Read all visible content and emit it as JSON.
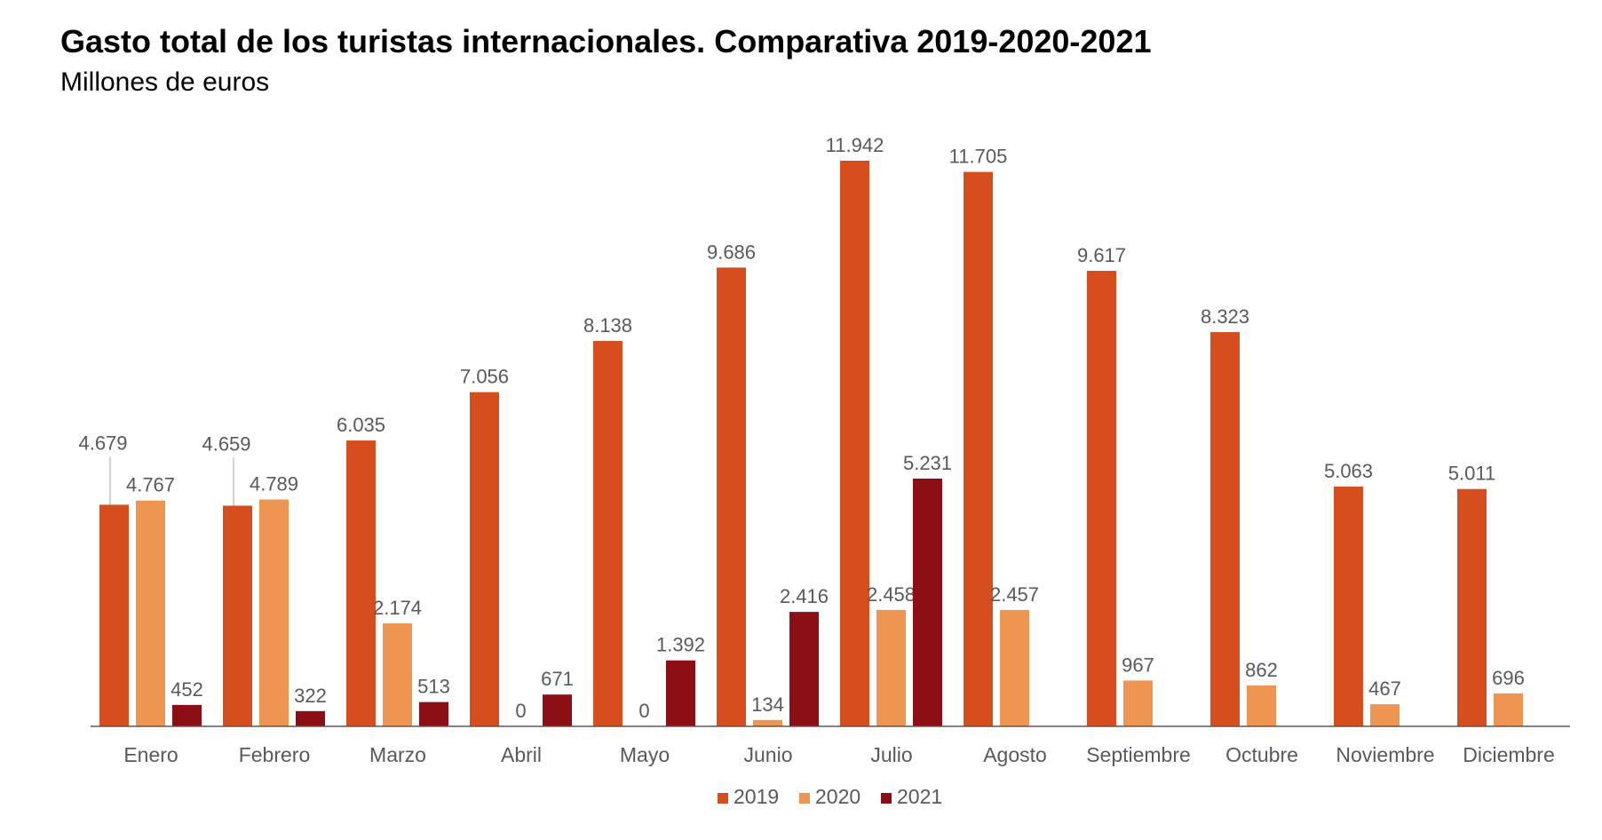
{
  "title": "Gasto total de los turistas internacionales. Comparativa 2019-2020-2021",
  "subtitle": "Millones de euros",
  "colors": {
    "s2019": "#d64d1e",
    "s2020": "#ef9552",
    "s2021": "#8b0f14",
    "axis": "#595959",
    "label": "#595959"
  },
  "chart_data": {
    "type": "bar",
    "title": "Gasto total de los turistas internacionales. Comparativa 2019-2020-2021",
    "subtitle": "Millones de euros",
    "categories": [
      "Enero",
      "Febrero",
      "Marzo",
      "Abril",
      "Mayo",
      "Junio",
      "Julio",
      "Agosto",
      "Septiembre",
      "Octubre",
      "Noviembre",
      "Diciembre"
    ],
    "series": [
      {
        "name": "2019",
        "color": "#d64d1e",
        "values": [
          4679,
          4659,
          6035,
          7056,
          8138,
          9686,
          11942,
          11705,
          9617,
          8323,
          5063,
          5011
        ],
        "labels": [
          "4.679",
          "4.659",
          "6.035",
          "7.056",
          "8.138",
          "9.686",
          "11.942",
          "11.705",
          "9.617",
          "8.323",
          "5.063",
          "5.011"
        ]
      },
      {
        "name": "2020",
        "color": "#ef9552",
        "values": [
          4767,
          4789,
          2174,
          0,
          0,
          134,
          2458,
          2457,
          967,
          862,
          467,
          696
        ],
        "labels": [
          "4.767",
          "4.789",
          "2.174",
          "0",
          "0",
          "134",
          "2.458",
          "2.457",
          "967",
          "862",
          "467",
          "696"
        ]
      },
      {
        "name": "2021",
        "color": "#8b0f14",
        "values": [
          452,
          322,
          513,
          671,
          1392,
          2416,
          5231,
          null,
          null,
          null,
          null,
          null
        ],
        "labels": [
          "452",
          "322",
          "513",
          "671",
          "1.392",
          "2.416",
          "5.231",
          null,
          null,
          null,
          null,
          null
        ]
      }
    ],
    "ylim": [
      0,
      12000
    ],
    "grid": false,
    "legend": "bottom-center"
  }
}
